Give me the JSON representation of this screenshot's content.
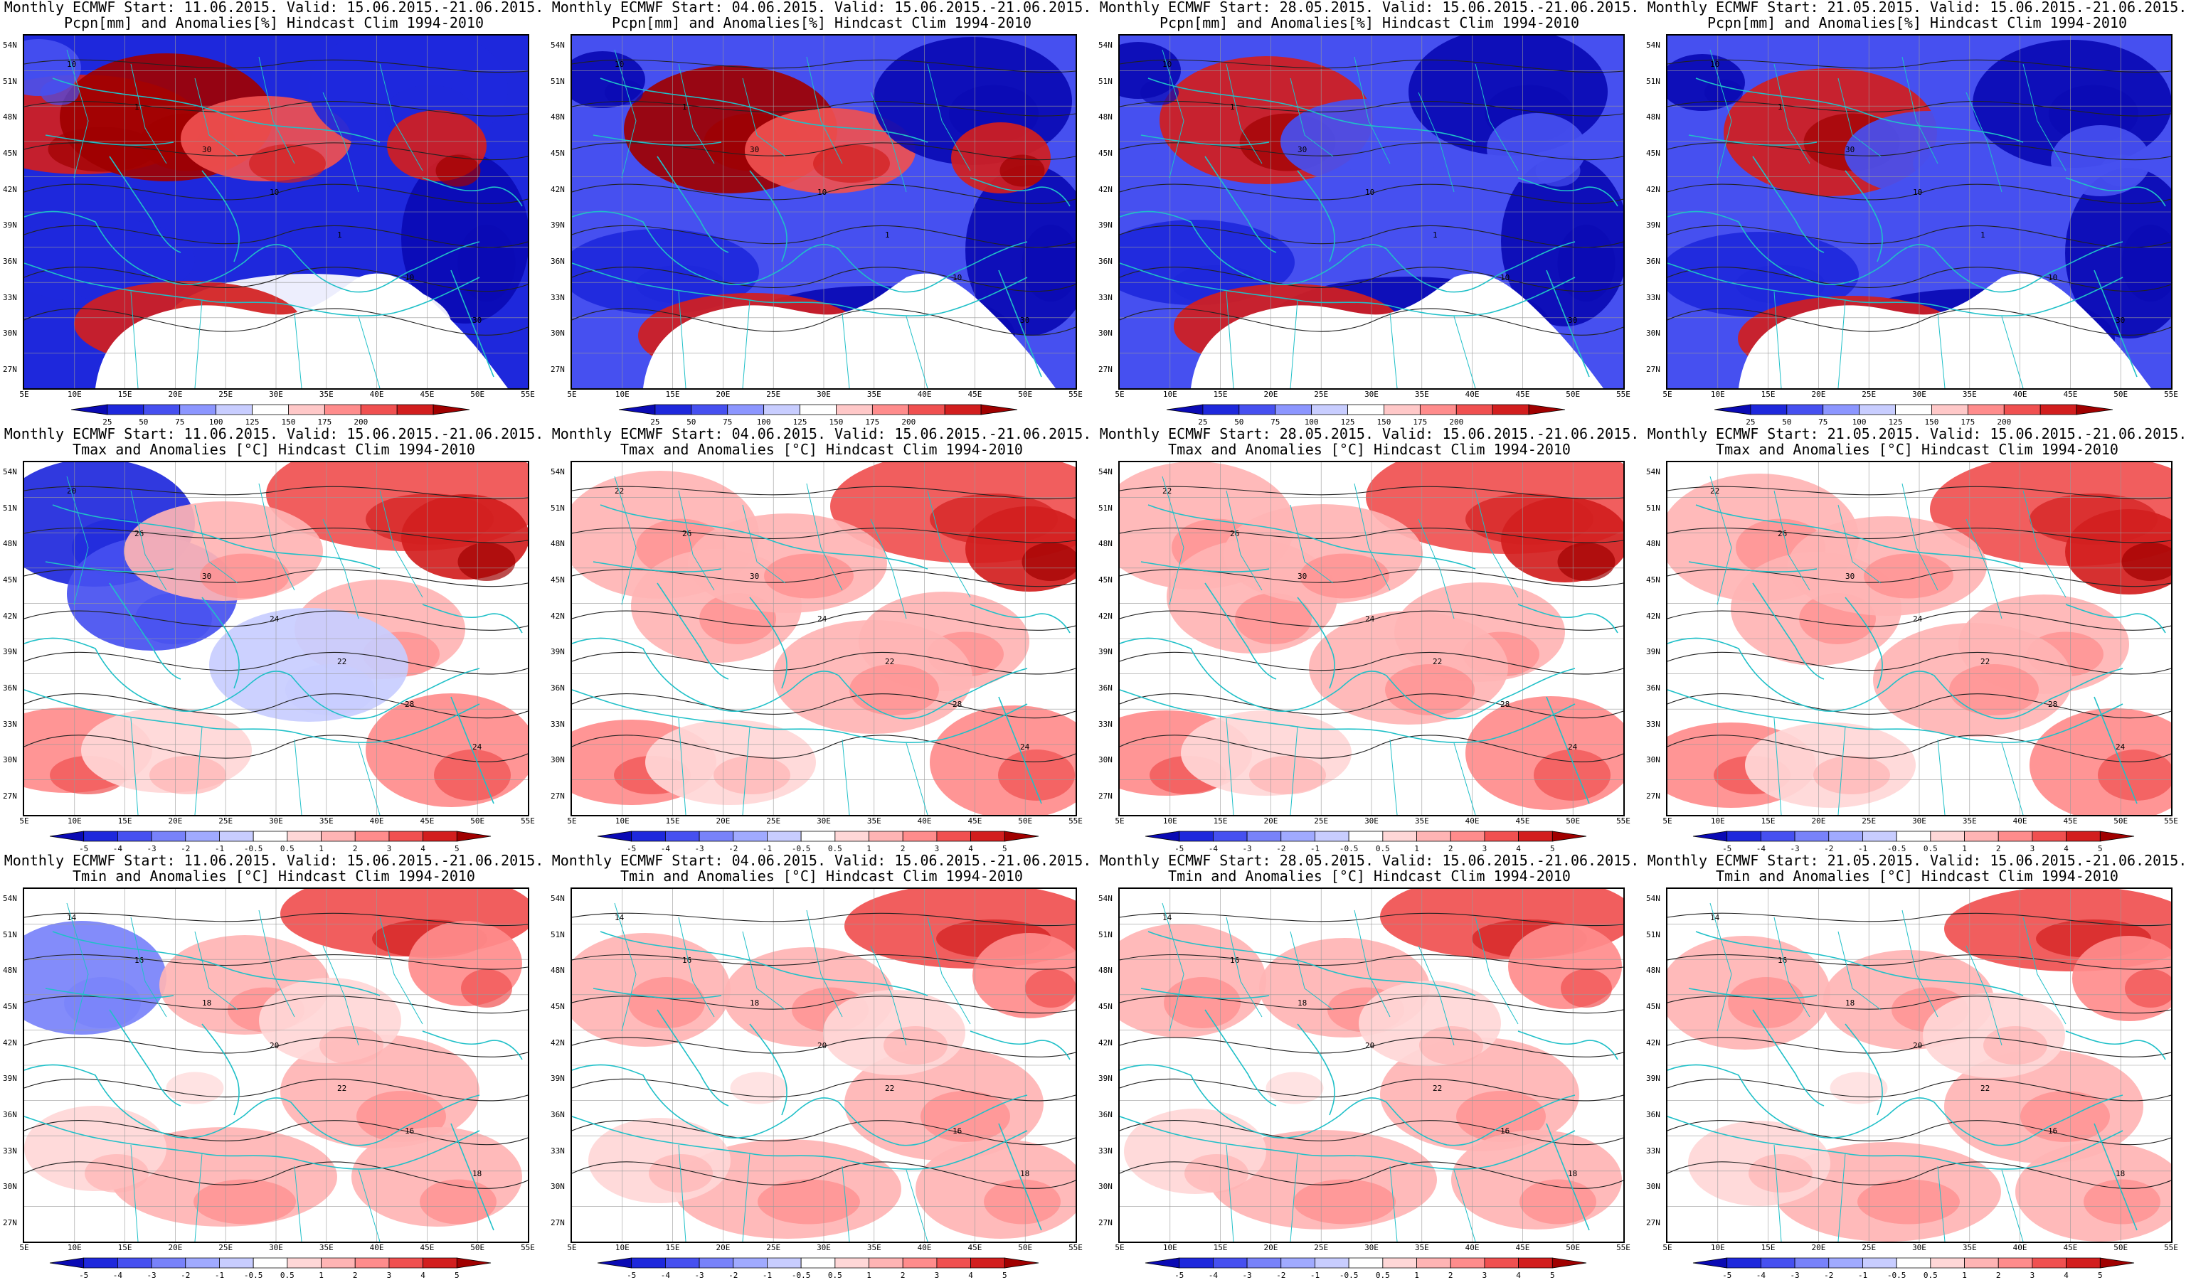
{
  "lat_labels": [
    "54N",
    "51N",
    "48N",
    "45N",
    "42N",
    "39N",
    "36N",
    "33N",
    "30N",
    "27N"
  ],
  "lon_labels": [
    "5E",
    "10E",
    "15E",
    "20E",
    "25E",
    "30E",
    "35E",
    "40E",
    "45E",
    "50E",
    "55E"
  ],
  "scales": {
    "pcpn": {
      "labels": [
        "25",
        "50",
        "75",
        "100",
        "125",
        "150",
        "175",
        "200"
      ],
      "colors": [
        "#0a0ab4",
        "#1e28dc",
        "#4650f0",
        "#8c96ff",
        "#c8cdff",
        "#ffffff",
        "#ffc8c8",
        "#ff8c8c",
        "#f05050",
        "#d21e1e",
        "#a00000"
      ]
    },
    "temp": {
      "labels": [
        "-5",
        "-4",
        "-3",
        "-2",
        "-1",
        "-0.5",
        "0.5",
        "1",
        "2",
        "3",
        "4",
        "5"
      ],
      "colors": [
        "#0a0ab4",
        "#1e28dc",
        "#4650f0",
        "#7882fa",
        "#a0aaff",
        "#c8cdff",
        "#ffffff",
        "#ffd7d7",
        "#ffb4b4",
        "#ff8c8c",
        "#f05050",
        "#d21e1e",
        "#a00000"
      ]
    }
  },
  "rows": [
    {
      "var": "pcpn",
      "line2": "Pcpn[mm] and Anomalies[%] Hindcast Clim 1994-2010",
      "panels": [
        {
          "line1": "Monthly ECMWF Start: 11.06.2015. Valid: 15.06.2015.-21.06.2015.",
          "contours": [
            "10",
            "1",
            "30",
            "10",
            "1",
            "10",
            "30"
          ]
        },
        {
          "line1": "Monthly ECMWF Start: 04.06.2015. Valid: 15.06.2015.-21.06.2015.",
          "contours": [
            "10",
            "1",
            "30",
            "10",
            "1",
            "10",
            "30"
          ]
        },
        {
          "line1": "Monthly ECMWF Start: 28.05.2015. Valid: 15.06.2015.-21.06.2015.",
          "contours": [
            "10",
            "1",
            "30",
            "10",
            "1",
            "10",
            "30"
          ]
        },
        {
          "line1": "Monthly ECMWF Start: 21.05.2015. Valid: 15.06.2015.-21.06.2015.",
          "contours": [
            "10",
            "1",
            "30",
            "10",
            "1",
            "10",
            "30"
          ]
        }
      ]
    },
    {
      "var": "temp",
      "line2": "Tmax and Anomalies [°C] Hindcast Clim 1994-2010",
      "panels": [
        {
          "line1": "Monthly ECMWF Start: 11.06.2015. Valid: 15.06.2015.-21.06.2015.",
          "contours": [
            "20",
            "26",
            "30",
            "24",
            "22",
            "28",
            "24"
          ]
        },
        {
          "line1": "Monthly ECMWF Start: 04.06.2015. Valid: 15.06.2015.-21.06.2015.",
          "contours": [
            "22",
            "26",
            "30",
            "24",
            "22",
            "28",
            "24"
          ]
        },
        {
          "line1": "Monthly ECMWF Start: 28.05.2015. Valid: 15.06.2015.-21.06.2015.",
          "contours": [
            "22",
            "26",
            "30",
            "24",
            "22",
            "28",
            "24"
          ]
        },
        {
          "line1": "Monthly ECMWF Start: 21.05.2015. Valid: 15.06.2015.-21.06.2015.",
          "contours": [
            "22",
            "26",
            "30",
            "24",
            "22",
            "28",
            "24"
          ]
        }
      ]
    },
    {
      "var": "temp",
      "line2": "Tmin and Anomalies [°C] Hindcast Clim 1994-2010",
      "panels": [
        {
          "line1": "Monthly ECMWF Start: 11.06.2015. Valid: 15.06.2015.-21.06.2015.",
          "contours": [
            "14",
            "16",
            "18",
            "20",
            "22",
            "16",
            "18"
          ]
        },
        {
          "line1": "Monthly ECMWF Start: 04.06.2015. Valid: 15.06.2015.-21.06.2015.",
          "contours": [
            "14",
            "16",
            "18",
            "20",
            "22",
            "16",
            "18"
          ]
        },
        {
          "line1": "Monthly ECMWF Start: 28.05.2015. Valid: 15.06.2015.-21.06.2015.",
          "contours": [
            "14",
            "16",
            "18",
            "20",
            "22",
            "16",
            "18"
          ]
        },
        {
          "line1": "Monthly ECMWF Start: 21.05.2015. Valid: 15.06.2015.-21.06.2015.",
          "contours": [
            "14",
            "16",
            "18",
            "20",
            "22",
            "16",
            "18"
          ]
        }
      ]
    }
  ]
}
